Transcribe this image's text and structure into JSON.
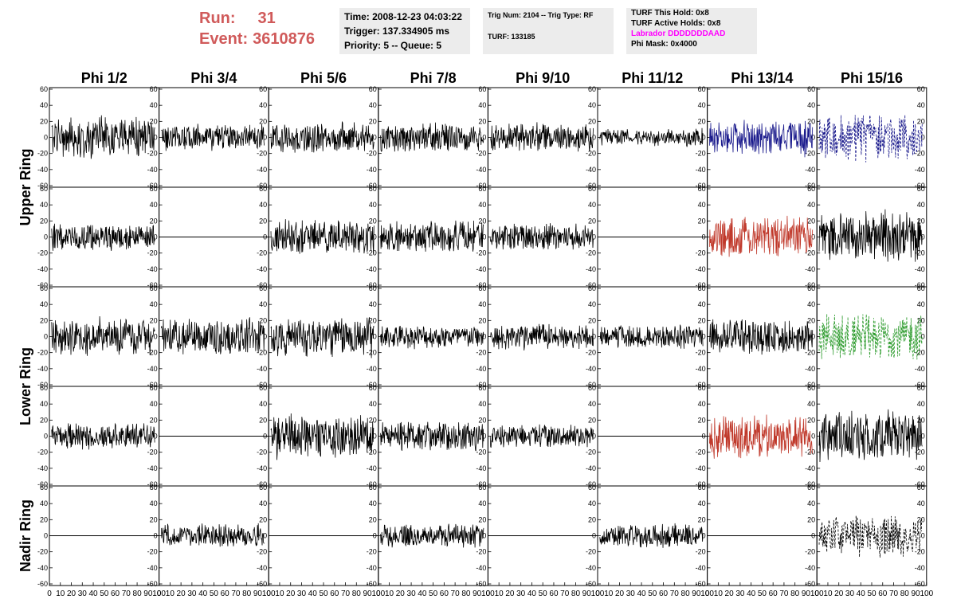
{
  "header": {
    "run_label": "Run:",
    "run_value": "31",
    "event_label": "Event:",
    "event_value": "3610876",
    "info1": [
      "Time: 2008-12-23 04:03:22",
      "Trigger: 137.334905 ms",
      "Priority: 5 -- Queue: 5"
    ],
    "info2": [
      "Trig Num: 2104 -- Trig Type: RF",
      "TURF: 133185"
    ],
    "info3": [
      "TURF This Hold: 0x8",
      "TURF Active Holds: 0x8",
      "Labrador DDDDDDDAAD",
      "Phi Mask: 0x4000"
    ]
  },
  "colors": {
    "run_text": "#d05a5a",
    "info_bg": "#ececec",
    "labrador_text": "#ff00ff",
    "trace_black": "#000000",
    "trace_blue": "#1a1a8c",
    "trace_red": "#c0392b",
    "trace_green": "#2a9a2a"
  },
  "chart_data": {
    "type": "line",
    "columns": [
      "Phi 1/2",
      "Phi 3/4",
      "Phi 5/6",
      "Phi 7/8",
      "Phi 9/10",
      "Phi 11/12",
      "Phi 13/14",
      "Phi 15/16"
    ],
    "rows": [
      "Upper Ring",
      "Upper Ring",
      "Lower Ring",
      "Lower Ring",
      "Nadir Ring"
    ],
    "row_labels": [
      "Upper Ring",
      "Lower Ring",
      "Nadir Ring"
    ],
    "xlim": [
      0,
      100
    ],
    "ylim": [
      -60,
      60
    ],
    "x_ticks": [
      "0",
      "10",
      "20",
      "30",
      "40",
      "50",
      "60",
      "70",
      "80",
      "90",
      "100"
    ],
    "y_ticks": [
      "60",
      "40",
      "20",
      "0",
      "-20",
      "-40",
      "-60"
    ],
    "panels": [
      [
        {
          "trace": "noise",
          "amp": 28,
          "color": "trace_black"
        },
        {
          "trace": "noise",
          "amp": 18,
          "color": "trace_black"
        },
        {
          "trace": "noise",
          "amp": 20,
          "color": "trace_black"
        },
        {
          "trace": "noise",
          "amp": 20,
          "color": "trace_black"
        },
        {
          "trace": "noise",
          "amp": 20,
          "color": "trace_black"
        },
        {
          "trace": "noise",
          "amp": 12,
          "color": "trace_black"
        },
        {
          "trace": "noise",
          "amp": 25,
          "color": "trace_blue"
        },
        {
          "trace": "dashed",
          "amp": 32,
          "color": "trace_blue"
        }
      ],
      [
        {
          "trace": "noise",
          "amp": 18,
          "color": "trace_black"
        },
        {
          "trace": "flat",
          "amp": 0,
          "color": "trace_black"
        },
        {
          "trace": "noise",
          "amp": 24,
          "color": "trace_black"
        },
        {
          "trace": "noise",
          "amp": 22,
          "color": "trace_black"
        },
        {
          "trace": "noise",
          "amp": 18,
          "color": "trace_black"
        },
        {
          "trace": "flat",
          "amp": 0,
          "color": "trace_black"
        },
        {
          "trace": "noise",
          "amp": 28,
          "color": "trace_red"
        },
        {
          "trace": "noise",
          "amp": 35,
          "color": "trace_black"
        }
      ],
      [
        {
          "trace": "noise",
          "amp": 26,
          "color": "trace_black"
        },
        {
          "trace": "noise",
          "amp": 26,
          "color": "trace_black"
        },
        {
          "trace": "noise",
          "amp": 28,
          "color": "trace_black"
        },
        {
          "trace": "noise",
          "amp": 16,
          "color": "trace_black"
        },
        {
          "trace": "noise",
          "amp": 18,
          "color": "trace_black"
        },
        {
          "trace": "noise",
          "amp": 16,
          "color": "trace_black"
        },
        {
          "trace": "noise",
          "amp": 24,
          "color": "trace_black"
        },
        {
          "trace": "dashed",
          "amp": 32,
          "color": "trace_green"
        }
      ],
      [
        {
          "trace": "noise",
          "amp": 18,
          "color": "trace_black"
        },
        {
          "trace": "flat",
          "amp": 0,
          "color": "trace_black"
        },
        {
          "trace": "noise",
          "amp": 30,
          "color": "trace_black"
        },
        {
          "trace": "noise",
          "amp": 20,
          "color": "trace_black"
        },
        {
          "trace": "noise",
          "amp": 16,
          "color": "trace_black"
        },
        {
          "trace": "flat",
          "amp": 0,
          "color": "trace_black"
        },
        {
          "trace": "noise",
          "amp": 30,
          "color": "trace_red"
        },
        {
          "trace": "noise",
          "amp": 34,
          "color": "trace_black"
        }
      ],
      [
        {
          "trace": "flat",
          "amp": 0,
          "color": "trace_black"
        },
        {
          "trace": "noise",
          "amp": 16,
          "color": "trace_black"
        },
        {
          "trace": "flat",
          "amp": 0,
          "color": "trace_black"
        },
        {
          "trace": "noise",
          "amp": 16,
          "color": "trace_black"
        },
        {
          "trace": "flat",
          "amp": 0,
          "color": "trace_black"
        },
        {
          "trace": "noise",
          "amp": 16,
          "color": "trace_black"
        },
        {
          "trace": "flat",
          "amp": 0,
          "color": "trace_black"
        },
        {
          "trace": "dashed",
          "amp": 28,
          "color": "trace_black"
        }
      ]
    ]
  }
}
